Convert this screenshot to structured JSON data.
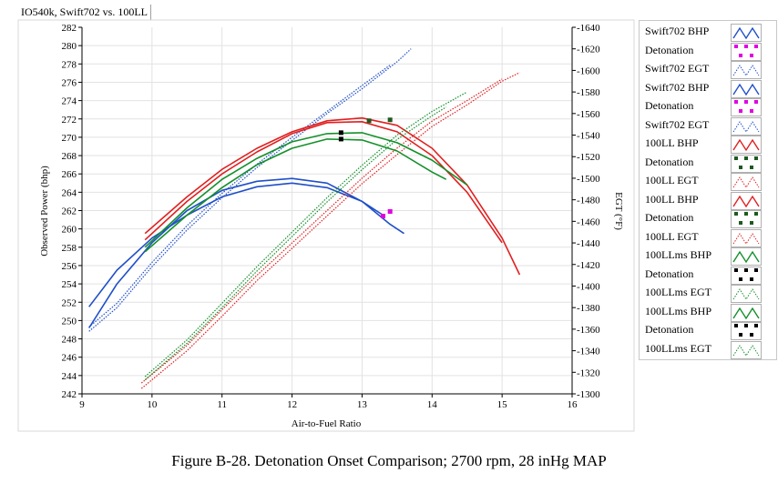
{
  "window": {
    "title": "IO540k, Swift702 vs. 100LL"
  },
  "figure_caption": "Figure B-28.  Detonation Onset Comparison; 2700 rpm, 28 inHg MAP",
  "colors": {
    "blue": "#1f4fc8",
    "red": "#e02020",
    "green": "#14902a",
    "magenta": "#e000e0",
    "black": "#000000",
    "frame": "#d8d8d8"
  },
  "legend": [
    {
      "label": "Swift702 BHP",
      "color": "#1f4fc8",
      "kind": "bhp"
    },
    {
      "label": "Detonation",
      "color": "#e000e0",
      "kind": "det"
    },
    {
      "label": "Swift702 EGT",
      "color": "#1f4fc8",
      "kind": "egt"
    },
    {
      "label": "Swift702 BHP",
      "color": "#1f4fc8",
      "kind": "bhp"
    },
    {
      "label": "Detonation",
      "color": "#e000e0",
      "kind": "det"
    },
    {
      "label": "Swift702 EGT",
      "color": "#1f4fc8",
      "kind": "egt"
    },
    {
      "label": "100LL BHP",
      "color": "#e02020",
      "kind": "bhp"
    },
    {
      "label": "Detonation",
      "color": "#1e5a1e",
      "kind": "det"
    },
    {
      "label": "100LL EGT",
      "color": "#e02020",
      "kind": "egt"
    },
    {
      "label": "100LL BHP",
      "color": "#e02020",
      "kind": "bhp"
    },
    {
      "label": "Detonation",
      "color": "#1e5a1e",
      "kind": "det"
    },
    {
      "label": "100LL EGT",
      "color": "#e02020",
      "kind": "egt"
    },
    {
      "label": "100LLms BHP",
      "color": "#14902a",
      "kind": "bhp"
    },
    {
      "label": "Detonation",
      "color": "#000000",
      "kind": "det"
    },
    {
      "label": "100LLms EGT",
      "color": "#14902a",
      "kind": "egt"
    },
    {
      "label": "100LLms BHP",
      "color": "#14902a",
      "kind": "bhp"
    },
    {
      "label": "Detonation",
      "color": "#000000",
      "kind": "det"
    },
    {
      "label": "100LLms EGT",
      "color": "#14902a",
      "kind": "egt"
    }
  ],
  "chart_data": {
    "type": "line",
    "title": "IO540k, Swift702 vs. 100LL",
    "xlabel": "Air-to-Fuel Ratio",
    "ylabel": "Observed Power (bhp)",
    "y2label": "EGT (°F)",
    "xlim": [
      9,
      16
    ],
    "ylim": [
      242,
      282
    ],
    "y2lim": [
      1300,
      1640
    ],
    "x_ticks": [
      9,
      10,
      11,
      12,
      13,
      14,
      15,
      16
    ],
    "y_ticks": [
      242,
      244,
      246,
      248,
      250,
      252,
      254,
      256,
      258,
      260,
      262,
      264,
      266,
      268,
      270,
      272,
      274,
      276,
      278,
      280,
      282
    ],
    "y2_ticks": [
      1300,
      1320,
      1340,
      1360,
      1380,
      1400,
      1420,
      1440,
      1460,
      1480,
      1500,
      1520,
      1540,
      1560,
      1580,
      1600,
      1620,
      1640
    ],
    "grid": true,
    "legend_position": "right",
    "series": [
      {
        "name": "Swift702 BHP",
        "axis": "left",
        "style": "solid",
        "color": "#1f4fc8",
        "x": [
          9.1,
          9.5,
          10,
          10.5,
          11,
          11.5,
          12,
          12.5,
          13,
          13.4,
          13.6
        ],
        "y": [
          249.2,
          254.0,
          258.5,
          262.0,
          264.2,
          265.2,
          265.5,
          265.0,
          263.0,
          260.5,
          259.5
        ]
      },
      {
        "name": "Detonation",
        "axis": "left",
        "style": "marker",
        "color": "#e000e0",
        "x": [
          13.4
        ],
        "y": [
          261.9
        ]
      },
      {
        "name": "Swift702 EGT",
        "axis": "right",
        "style": "dotted",
        "color": "#1f4fc8",
        "x": [
          9.1,
          9.5,
          10,
          10.5,
          11,
          11.5,
          12,
          12.5,
          13,
          13.5,
          13.7
        ],
        "y": [
          1358,
          1380,
          1418,
          1452,
          1482,
          1510,
          1535,
          1560,
          1583,
          1608,
          1620
        ]
      },
      {
        "name": "Swift702 BHP",
        "axis": "left",
        "style": "solid",
        "color": "#1f4fc8",
        "x": [
          9.1,
          9.5,
          10,
          10.5,
          11,
          11.5,
          12,
          12.5,
          13,
          13.3
        ],
        "y": [
          251.5,
          255.5,
          259.0,
          261.5,
          263.5,
          264.6,
          265.0,
          264.5,
          263.0,
          261.5
        ]
      },
      {
        "name": "Detonation",
        "axis": "left",
        "style": "marker",
        "color": "#e000e0",
        "x": [
          13.3
        ],
        "y": [
          261.4
        ]
      },
      {
        "name": "Swift702 EGT",
        "axis": "right",
        "style": "dotted",
        "color": "#1f4fc8",
        "x": [
          9.1,
          9.5,
          10,
          10.5,
          11,
          11.5,
          12,
          12.5,
          13,
          13.4
        ],
        "y": [
          1362,
          1384,
          1422,
          1456,
          1486,
          1513,
          1538,
          1562,
          1586,
          1605
        ]
      },
      {
        "name": "100LL BHP",
        "axis": "left",
        "style": "solid",
        "color": "#e02020",
        "x": [
          9.9,
          10.5,
          11,
          11.5,
          12,
          12.5,
          13,
          13.5,
          14,
          14.5,
          15,
          15.25
        ],
        "y": [
          259.5,
          263.5,
          266.5,
          268.8,
          270.6,
          271.8,
          272.1,
          271.3,
          268.8,
          264.8,
          259.0,
          255.0
        ]
      },
      {
        "name": "Detonation",
        "axis": "left",
        "style": "marker",
        "color": "#1e5a1e",
        "x": [
          13.4
        ],
        "y": [
          271.9
        ]
      },
      {
        "name": "100LL EGT",
        "axis": "right",
        "style": "dotted",
        "color": "#e02020",
        "x": [
          9.85,
          10.5,
          11,
          11.5,
          12,
          12.5,
          13,
          13.5,
          14,
          14.5,
          15,
          15.25
        ],
        "y": [
          1305,
          1340,
          1372,
          1405,
          1435,
          1465,
          1495,
          1522,
          1548,
          1568,
          1590,
          1598
        ]
      },
      {
        "name": "100LL BHP",
        "axis": "left",
        "style": "solid",
        "color": "#e02020",
        "x": [
          9.9,
          10.5,
          11,
          11.5,
          12,
          12.5,
          13,
          13.5,
          14,
          14.5,
          15
        ],
        "y": [
          258.8,
          263.0,
          266.0,
          268.4,
          270.4,
          271.6,
          271.7,
          270.6,
          268.0,
          264.0,
          258.5
        ]
      },
      {
        "name": "Detonation",
        "axis": "left",
        "style": "marker",
        "color": "#1e5a1e",
        "x": [
          13.1
        ],
        "y": [
          271.8
        ]
      },
      {
        "name": "100LL EGT",
        "axis": "right",
        "style": "dotted",
        "color": "#e02020",
        "x": [
          9.85,
          10.5,
          11,
          11.5,
          12,
          12.5,
          13,
          13.5,
          14,
          14.5,
          15
        ],
        "y": [
          1310,
          1345,
          1378,
          1410,
          1440,
          1470,
          1500,
          1528,
          1553,
          1572,
          1592
        ]
      },
      {
        "name": "100LLms BHP",
        "axis": "left",
        "style": "solid",
        "color": "#14902a",
        "x": [
          9.9,
          10.5,
          11,
          11.5,
          12,
          12.5,
          13,
          13.5,
          14,
          14.5
        ],
        "y": [
          258.0,
          262.3,
          265.4,
          267.7,
          269.5,
          270.4,
          270.5,
          269.4,
          267.5,
          264.8
        ]
      },
      {
        "name": "Detonation",
        "axis": "left",
        "style": "marker",
        "color": "#000000",
        "x": [
          12.7
        ],
        "y": [
          270.5
        ]
      },
      {
        "name": "100LLms EGT",
        "axis": "right",
        "style": "dotted",
        "color": "#14902a",
        "x": [
          9.9,
          10.5,
          11,
          11.5,
          12,
          12.5,
          13,
          13.5,
          14,
          14.5
        ],
        "y": [
          1316,
          1350,
          1384,
          1418,
          1450,
          1482,
          1512,
          1540,
          1562,
          1580
        ]
      },
      {
        "name": "100LLms BHP",
        "axis": "left",
        "style": "solid",
        "color": "#14902a",
        "x": [
          9.9,
          10.5,
          11,
          11.5,
          12,
          12.5,
          13,
          13.5,
          14,
          14.2
        ],
        "y": [
          257.5,
          261.5,
          264.5,
          267.0,
          268.8,
          269.8,
          269.7,
          268.5,
          266.2,
          265.4
        ]
      },
      {
        "name": "Detonation",
        "axis": "left",
        "style": "marker",
        "color": "#000000",
        "x": [
          12.7
        ],
        "y": [
          269.8
        ]
      },
      {
        "name": "100LLms EGT",
        "axis": "right",
        "style": "dotted",
        "color": "#14902a",
        "x": [
          9.9,
          10.5,
          11,
          11.5,
          12,
          12.5,
          13,
          13.5,
          14,
          14.2
        ],
        "y": [
          1313,
          1347,
          1380,
          1414,
          1446,
          1478,
          1508,
          1536,
          1558,
          1566
        ]
      }
    ]
  }
}
